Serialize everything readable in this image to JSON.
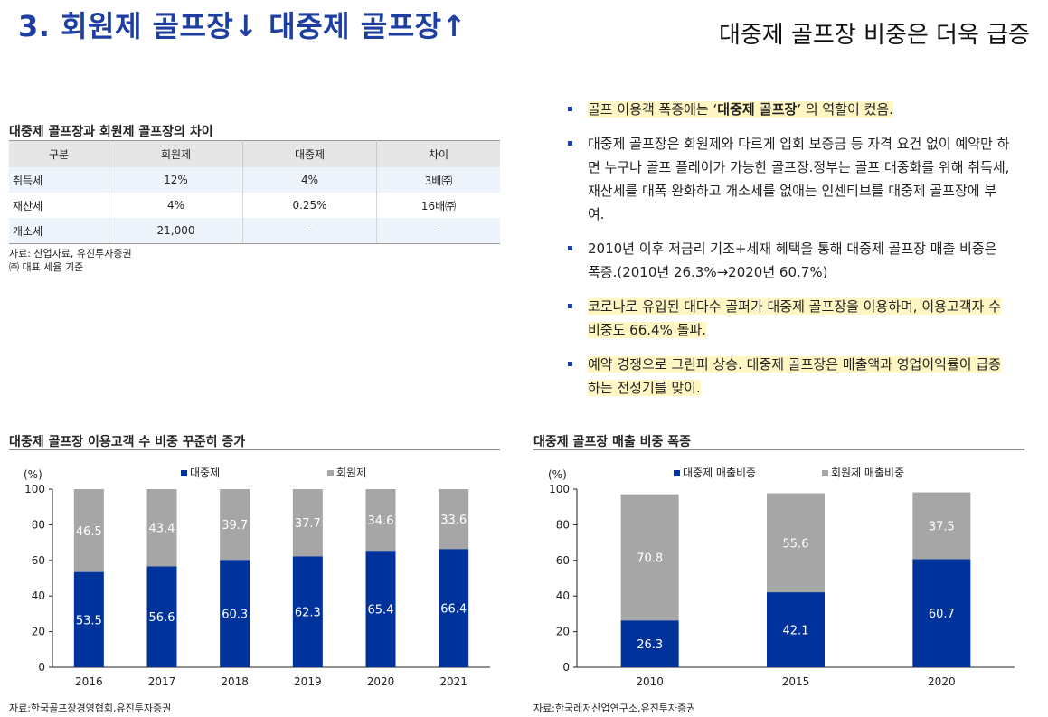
{
  "header": {
    "title": "3. 회원제 골프장↓ 대중제 골프장↑",
    "subtitle": "대중제 골프장 비중은 더욱 급증"
  },
  "table_section": {
    "title": "대중제 골프장과 회원제 골프장의 차이",
    "columns": [
      "구분",
      "회원제",
      "대중제",
      "차이"
    ],
    "rows": [
      [
        "취득세",
        "12%",
        "4%",
        "3배㈜"
      ],
      [
        "재산세",
        "4%",
        "0.25%",
        "16배㈜"
      ],
      [
        "개소세",
        "21,000",
        "-",
        "-"
      ]
    ],
    "source": "자료: 산업자료, 유진투자증권",
    "note": "㈜ 대표 세율 기준"
  },
  "bullets": [
    {
      "pre": "골프 이용객 폭증에는 ‘",
      "bold": "대중제 골프장",
      "post": "’ 의 역할이 컸음.",
      "highlight": true
    },
    {
      "pre": "대중제 골프장은 회원제와 다르게 입회 보증금 등 자격 요건 없이 예약만 하면 누구나 골프 플레이가 가능한 골프장.정부는 골프 대중화를 위해 취득세, 재산세를 대폭 완화하고 개소세를 없애는 인센티브를 대중제 골프장에 부여.",
      "bold": "",
      "post": "",
      "highlight": false
    },
    {
      "pre": "2010년 이후 저금리 기조+세재 혜택을 통해 대중제 골프장 매출 비중은 폭증.(2010년 26.3%→2020년 60.7%)",
      "bold": "",
      "post": "",
      "highlight": false
    },
    {
      "pre": "코로나로 유입된 대다수 골퍼가 대중제 골프장을 이용하며, 이용고객자 수 비중도 66.4% 돌파.",
      "bold": "",
      "post": "",
      "highlight": true
    },
    {
      "pre": "예약 경쟁으로 그린피 상승. 대중제 골프장은 매출액과 영업이익률이 급증하는 전성기를 맞이.",
      "bold": "",
      "post": "",
      "highlight": true
    }
  ],
  "chart_data": [
    {
      "type": "bar",
      "stacked": true,
      "title": "대중제 골프장 이용고객 수 비중 꾸준히 증가",
      "unit": "(%)",
      "categories": [
        "2016",
        "2017",
        "2018",
        "2019",
        "2020",
        "2021"
      ],
      "series": [
        {
          "name": "대중제",
          "color": "#00329b",
          "values": [
            53.5,
            56.6,
            60.3,
            62.3,
            65.4,
            66.4
          ]
        },
        {
          "name": "회원제",
          "color": "#a6a6a6",
          "values": [
            46.5,
            43.4,
            39.7,
            37.7,
            34.6,
            33.6
          ]
        }
      ],
      "ylim": [
        0,
        100
      ],
      "yticks": [
        0,
        20,
        40,
        60,
        80,
        100
      ],
      "legend": "top",
      "source": "자료:한국골프장경영협회,유진투자증권"
    },
    {
      "type": "bar",
      "stacked": true,
      "title": "대중제 골프장 매출 비중 폭증",
      "unit": "(%)",
      "categories": [
        "2010",
        "2015",
        "2020"
      ],
      "series": [
        {
          "name": "대중제 매출비중",
          "color": "#00329b",
          "values": [
            26.3,
            42.1,
            60.7
          ]
        },
        {
          "name": "회원제 매출비중",
          "color": "#a6a6a6",
          "values": [
            70.8,
            55.6,
            37.5
          ]
        }
      ],
      "ylim": [
        0,
        100
      ],
      "yticks": [
        0,
        20,
        40,
        60,
        80,
        100
      ],
      "legend": "top",
      "source": "자료:한국레저산업연구소,유진투자증권"
    }
  ]
}
